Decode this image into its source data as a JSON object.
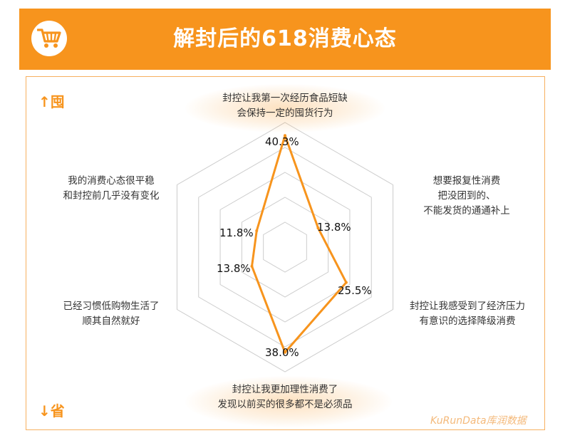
{
  "header": {
    "title": "解封后的618消费心态",
    "icon": "shopping-cart-icon"
  },
  "axis": {
    "top_label": "↑囤",
    "bottom_label": "↓省"
  },
  "watermark": "KuRunData库润数据",
  "colors": {
    "accent": "#f7941d",
    "grid": "#cccccc",
    "text": "#333333"
  },
  "chart_data": {
    "type": "radar",
    "max": 45,
    "rings": 5,
    "categories": [
      [
        "封控让我第一次经历食品短缺",
        "会保持一定的囤货行为"
      ],
      [
        "想要报复性消费",
        "把没团到的、",
        "不能发货的通通补上"
      ],
      [
        "封控让我感受到了经济压力",
        "有意识的选择降级消费"
      ],
      [
        "封控让我更加理性消费了",
        "发现以前买的很多都不是必须品"
      ],
      [
        "已经习惯低购物生活了",
        "顺其自然就好"
      ],
      [
        "我的消费心态很平稳",
        "和封控前几乎没有变化"
      ]
    ],
    "values": [
      40.3,
      13.8,
      25.5,
      38.0,
      13.8,
      11.8
    ],
    "value_labels": [
      "40.3%",
      "13.8%",
      "25.5%",
      "38.0%",
      "13.8%",
      "11.8%"
    ]
  }
}
